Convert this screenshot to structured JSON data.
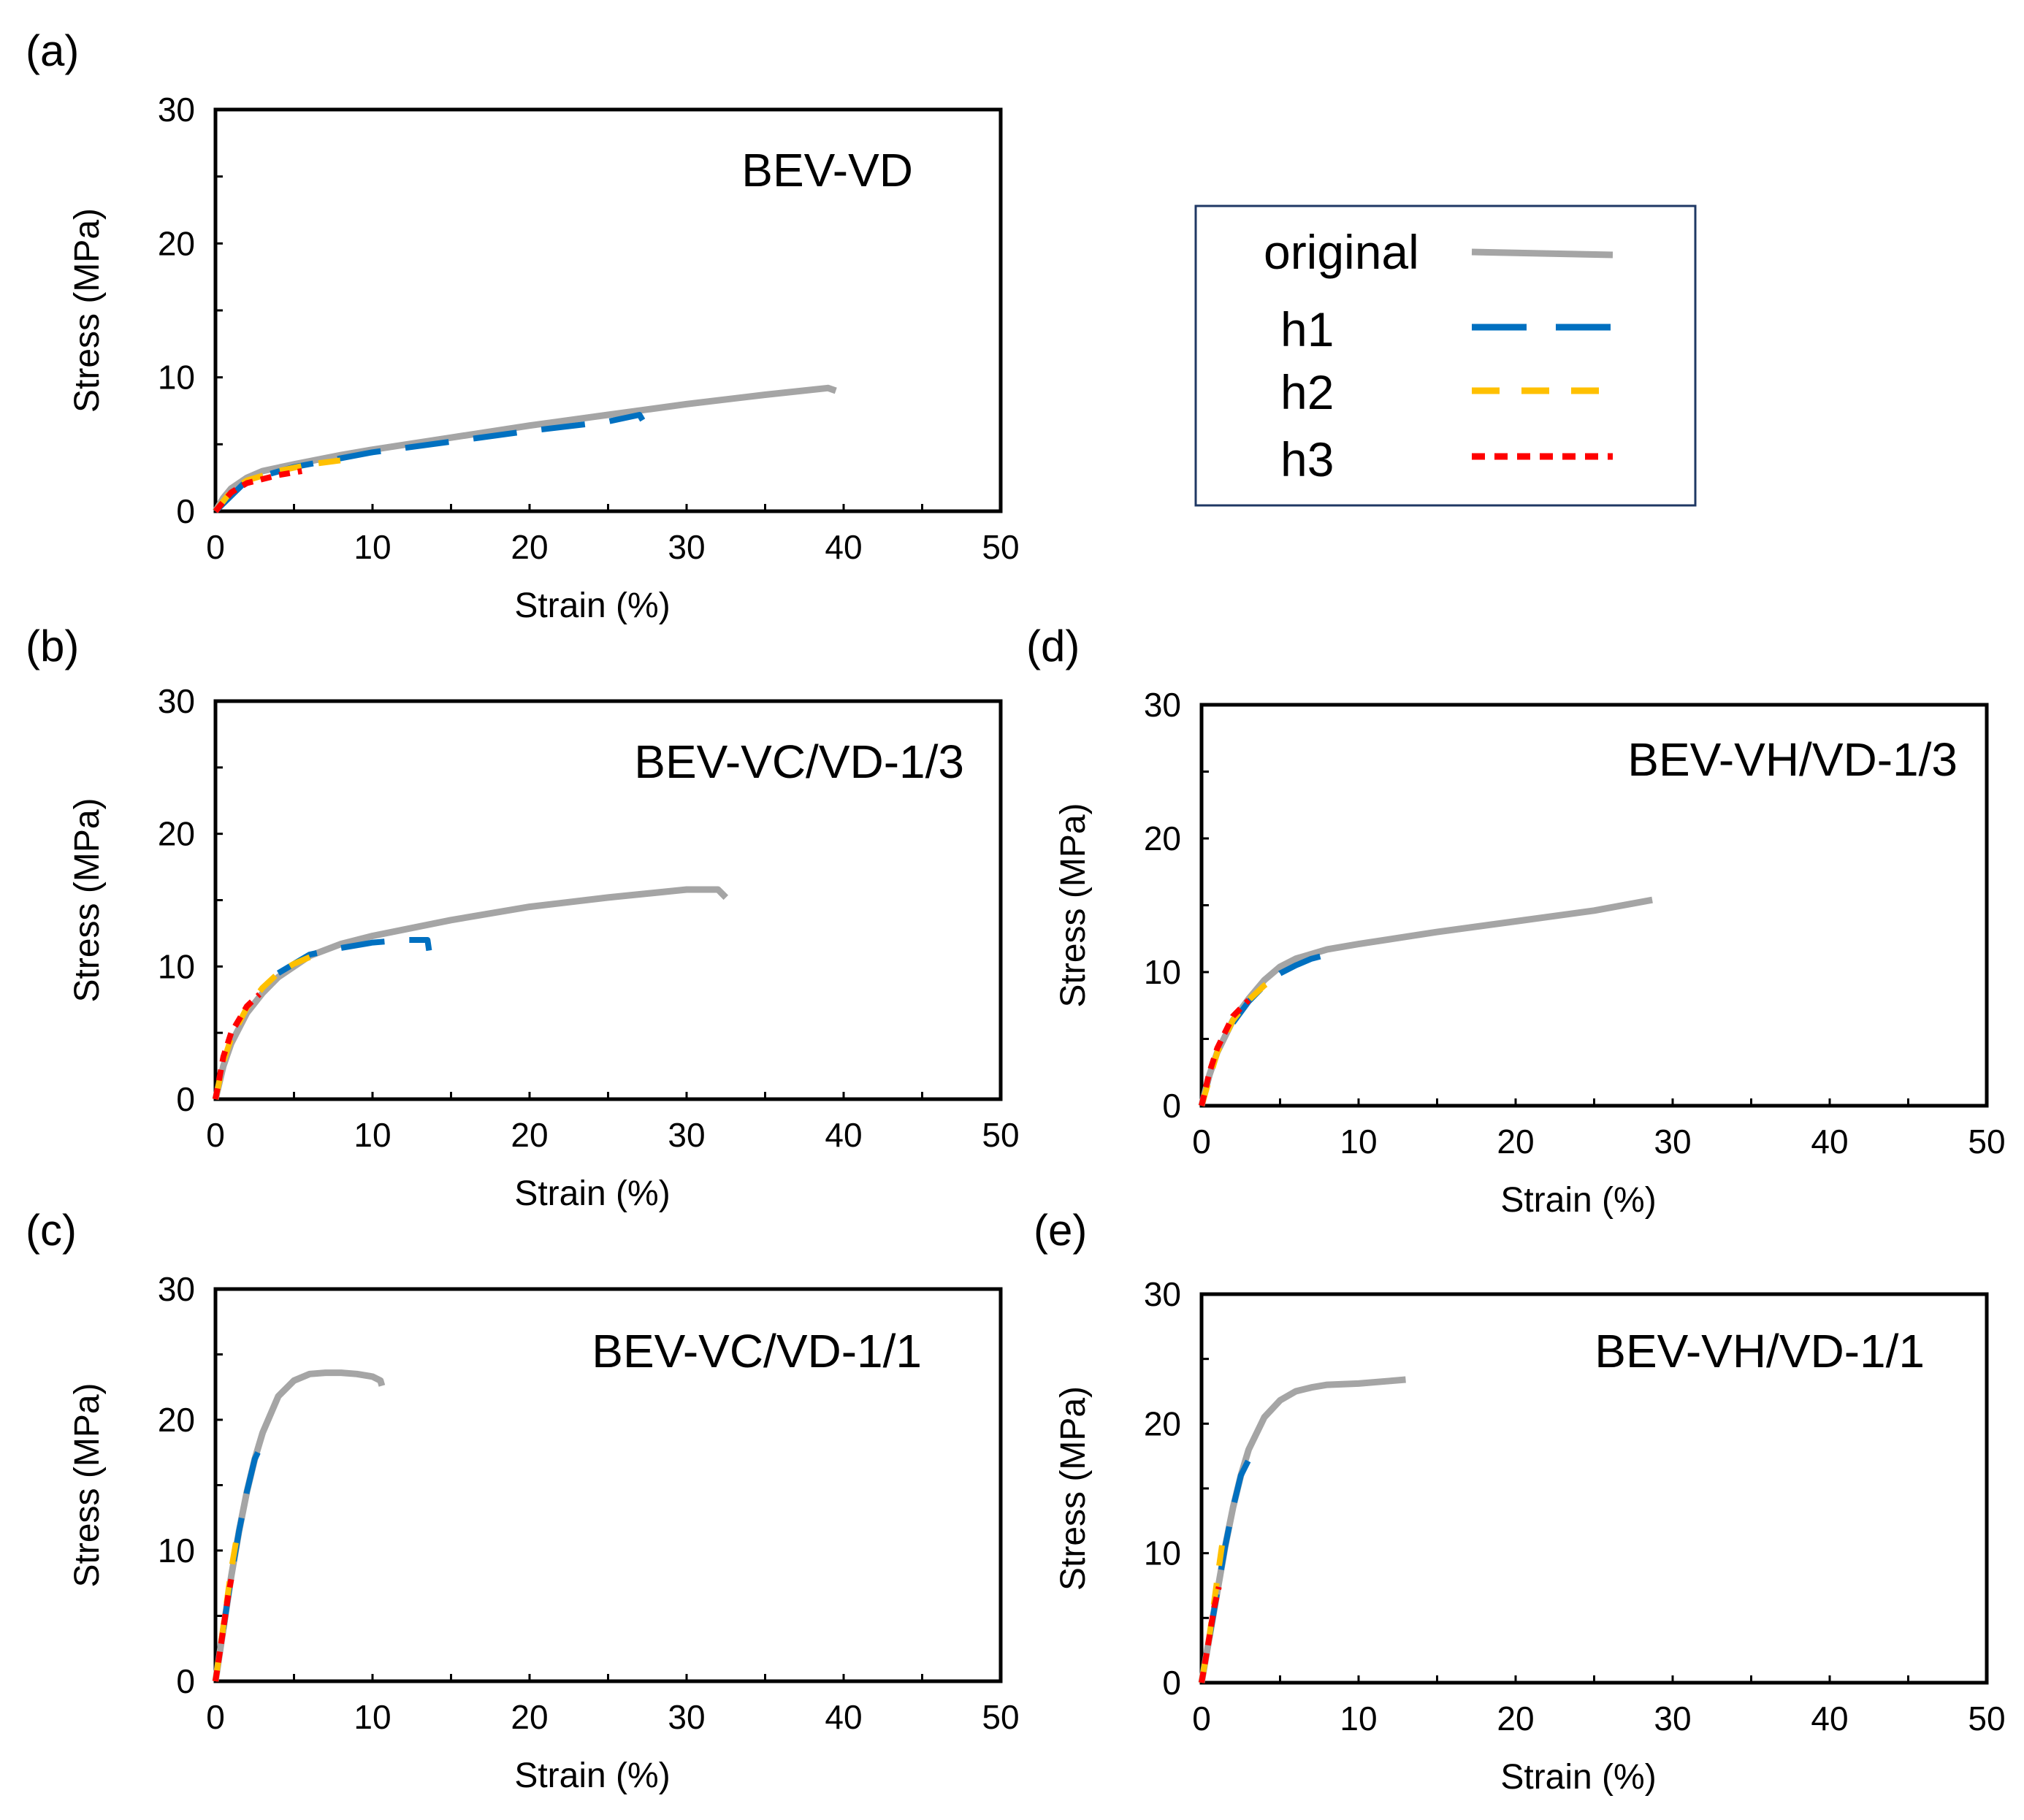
{
  "figure": {
    "legend": [
      {
        "label": "original",
        "color": "#A5A5A5",
        "dash": "solid"
      },
      {
        "label": "h1",
        "color": "#0070C0",
        "dash": "long-dash"
      },
      {
        "label": "h2",
        "color": "#FFC000",
        "dash": "dash"
      },
      {
        "label": "h3",
        "color": "#FF0000",
        "dash": "short-dash"
      }
    ]
  },
  "chart_data": [
    {
      "type": "line",
      "panel": "(a)",
      "title": "BEV-VD",
      "xlabel": "Strain (%)",
      "ylabel": "Stress (MPa)",
      "xlim": [
        0,
        50
      ],
      "ylim": [
        0,
        30
      ],
      "xticks": [
        "0",
        "10",
        "20",
        "30",
        "40",
        "50"
      ],
      "yticks": [
        "0",
        "10",
        "20",
        "30"
      ],
      "series": [
        {
          "name": "original",
          "x": [
            0,
            0.5,
            1,
            2,
            3,
            5,
            8,
            10,
            15,
            20,
            25,
            30,
            35,
            39,
            39.5
          ],
          "y": [
            0,
            1.0,
            1.7,
            2.5,
            3.0,
            3.5,
            4.2,
            4.6,
            5.5,
            6.4,
            7.2,
            8.0,
            8.7,
            9.2,
            9.0
          ]
        },
        {
          "name": "h1",
          "x": [
            0,
            2,
            5,
            10,
            15,
            20,
            25,
            27,
            27.2
          ],
          "y": [
            0,
            2.3,
            3.3,
            4.4,
            5.2,
            6.0,
            6.7,
            7.2,
            6.8
          ]
        },
        {
          "name": "h2",
          "x": [
            0,
            1,
            2,
            4,
            6,
            8,
            9
          ],
          "y": [
            0,
            1.5,
            2.3,
            3.0,
            3.5,
            3.8,
            3.7
          ]
        },
        {
          "name": "h3",
          "x": [
            0,
            1,
            2,
            4,
            5.5
          ],
          "y": [
            0,
            1.4,
            2.1,
            2.7,
            3.0
          ]
        }
      ]
    },
    {
      "type": "line",
      "panel": "(b)",
      "title": "BEV-VC/VD-1/3",
      "xlabel": "Strain (%)",
      "ylabel": "Stress (MPa)",
      "xlim": [
        0,
        50
      ],
      "ylim": [
        0,
        30
      ],
      "xticks": [
        "0",
        "10",
        "20",
        "30",
        "40",
        "50"
      ],
      "yticks": [
        "0",
        "10",
        "20",
        "30"
      ],
      "series": [
        {
          "name": "original",
          "x": [
            0,
            0.5,
            1,
            2,
            3,
            4,
            6,
            8,
            10,
            15,
            20,
            25,
            30,
            32,
            32.5
          ],
          "y": [
            0,
            2.5,
            4.2,
            6.5,
            8.0,
            9.2,
            10.8,
            11.7,
            12.3,
            13.5,
            14.5,
            15.2,
            15.8,
            15.8,
            15.2
          ]
        },
        {
          "name": "h1",
          "x": [
            4,
            6,
            8,
            10,
            12,
            13.5,
            13.6
          ],
          "y": [
            9.5,
            10.9,
            11.4,
            11.8,
            12.0,
            12.0,
            11.2
          ]
        },
        {
          "name": "h2",
          "x": [
            0,
            0.5,
            1,
            2,
            3,
            4,
            5,
            6
          ],
          "y": [
            0,
            2.8,
            4.6,
            6.9,
            8.4,
            9.5,
            10.2,
            10.7
          ]
        },
        {
          "name": "h3",
          "x": [
            0,
            0.5,
            1,
            2,
            2.8
          ],
          "y": [
            0,
            3.2,
            5.0,
            7.0,
            7.9
          ]
        }
      ]
    },
    {
      "type": "line",
      "panel": "(c)",
      "title": "BEV-VC/VD-1/1",
      "xlabel": "Strain (%)",
      "ylabel": "Stress (MPa)",
      "xlim": [
        0,
        50
      ],
      "ylim": [
        0,
        30
      ],
      "xticks": [
        "0",
        "10",
        "20",
        "30",
        "40",
        "50"
      ],
      "yticks": [
        "0",
        "10",
        "20",
        "30"
      ],
      "series": [
        {
          "name": "original",
          "x": [
            0,
            0.5,
            1,
            1.5,
            2,
            2.5,
            3,
            4,
            5,
            6,
            7,
            8,
            9,
            10,
            10.5,
            10.6
          ],
          "y": [
            0,
            4.0,
            8.0,
            11.5,
            14.5,
            17.0,
            19.0,
            21.8,
            23.0,
            23.5,
            23.6,
            23.6,
            23.5,
            23.3,
            23.0,
            22.6
          ]
        },
        {
          "name": "h1",
          "x": [
            0.5,
            1,
            1.5,
            2,
            2.5,
            2.7
          ],
          "y": [
            4.0,
            8.0,
            11.5,
            14.5,
            17.0,
            17.5
          ]
        },
        {
          "name": "h2",
          "x": [
            0,
            0.5,
            1,
            1.3
          ],
          "y": [
            0,
            4.2,
            8.5,
            10.6
          ]
        },
        {
          "name": "h3",
          "x": [
            0,
            0.4,
            0.8,
            1.0
          ],
          "y": [
            0,
            3.2,
            6.5,
            7.8
          ]
        }
      ]
    },
    {
      "type": "line",
      "panel": "(d)",
      "title": "BEV-VH/VD-1/3",
      "xlabel": "Strain (%)",
      "ylabel": "Stress (MPa)",
      "xlim": [
        0,
        50
      ],
      "ylim": [
        0,
        30
      ],
      "xticks": [
        "0",
        "10",
        "20",
        "30",
        "40",
        "50"
      ],
      "yticks": [
        "0",
        "10",
        "20",
        "30"
      ],
      "series": [
        {
          "name": "original",
          "x": [
            0,
            0.5,
            1,
            2,
            3,
            4,
            5,
            6,
            8,
            10,
            15,
            20,
            25,
            28.7
          ],
          "y": [
            0,
            2.3,
            4.0,
            6.4,
            8.0,
            9.4,
            10.4,
            11.0,
            11.7,
            12.1,
            13.0,
            13.8,
            14.6,
            15.4
          ]
        },
        {
          "name": "h1",
          "x": [
            2,
            3,
            4,
            5,
            6,
            7,
            8,
            9
          ],
          "y": [
            6.2,
            7.8,
            9.0,
            9.9,
            10.5,
            11.0,
            11.3,
            11.5
          ]
        },
        {
          "name": "h2",
          "x": [
            0,
            1,
            2,
            3,
            4,
            4.5
          ],
          "y": [
            0,
            4.0,
            6.4,
            7.9,
            9.0,
            9.4
          ]
        },
        {
          "name": "h3",
          "x": [
            0,
            0.5,
            1,
            2,
            3
          ],
          "y": [
            0,
            2.5,
            4.3,
            6.7,
            7.9
          ]
        }
      ]
    },
    {
      "type": "line",
      "panel": "(e)",
      "title": "BEV-VH/VD-1/1",
      "xlabel": "Strain (%)",
      "ylabel": "Stress (MPa)",
      "xlim": [
        0,
        50
      ],
      "ylim": [
        0,
        30
      ],
      "xticks": [
        "0",
        "10",
        "20",
        "30",
        "40",
        "50"
      ],
      "yticks": [
        "0",
        "10",
        "20",
        "30"
      ],
      "series": [
        {
          "name": "original",
          "x": [
            0,
            0.5,
            1,
            1.5,
            2,
            2.5,
            3,
            4,
            5,
            6,
            7,
            8,
            10,
            12,
            13
          ],
          "y": [
            0,
            3.5,
            7.0,
            10.5,
            13.5,
            16.0,
            18.0,
            20.5,
            21.8,
            22.5,
            22.8,
            23.0,
            23.1,
            23.3,
            23.4
          ]
        },
        {
          "name": "h1",
          "x": [
            0.5,
            1,
            1.5,
            2,
            2.5,
            3
          ],
          "y": [
            3.5,
            7.0,
            10.5,
            13.5,
            16.0,
            17.2
          ]
        },
        {
          "name": "h2",
          "x": [
            0,
            0.5,
            1,
            1.3
          ],
          "y": [
            0,
            3.6,
            8.0,
            10.6
          ]
        },
        {
          "name": "h3",
          "x": [
            0,
            0.4,
            0.8,
            1.1
          ],
          "y": [
            0,
            2.8,
            5.8,
            7.4
          ]
        }
      ]
    }
  ]
}
